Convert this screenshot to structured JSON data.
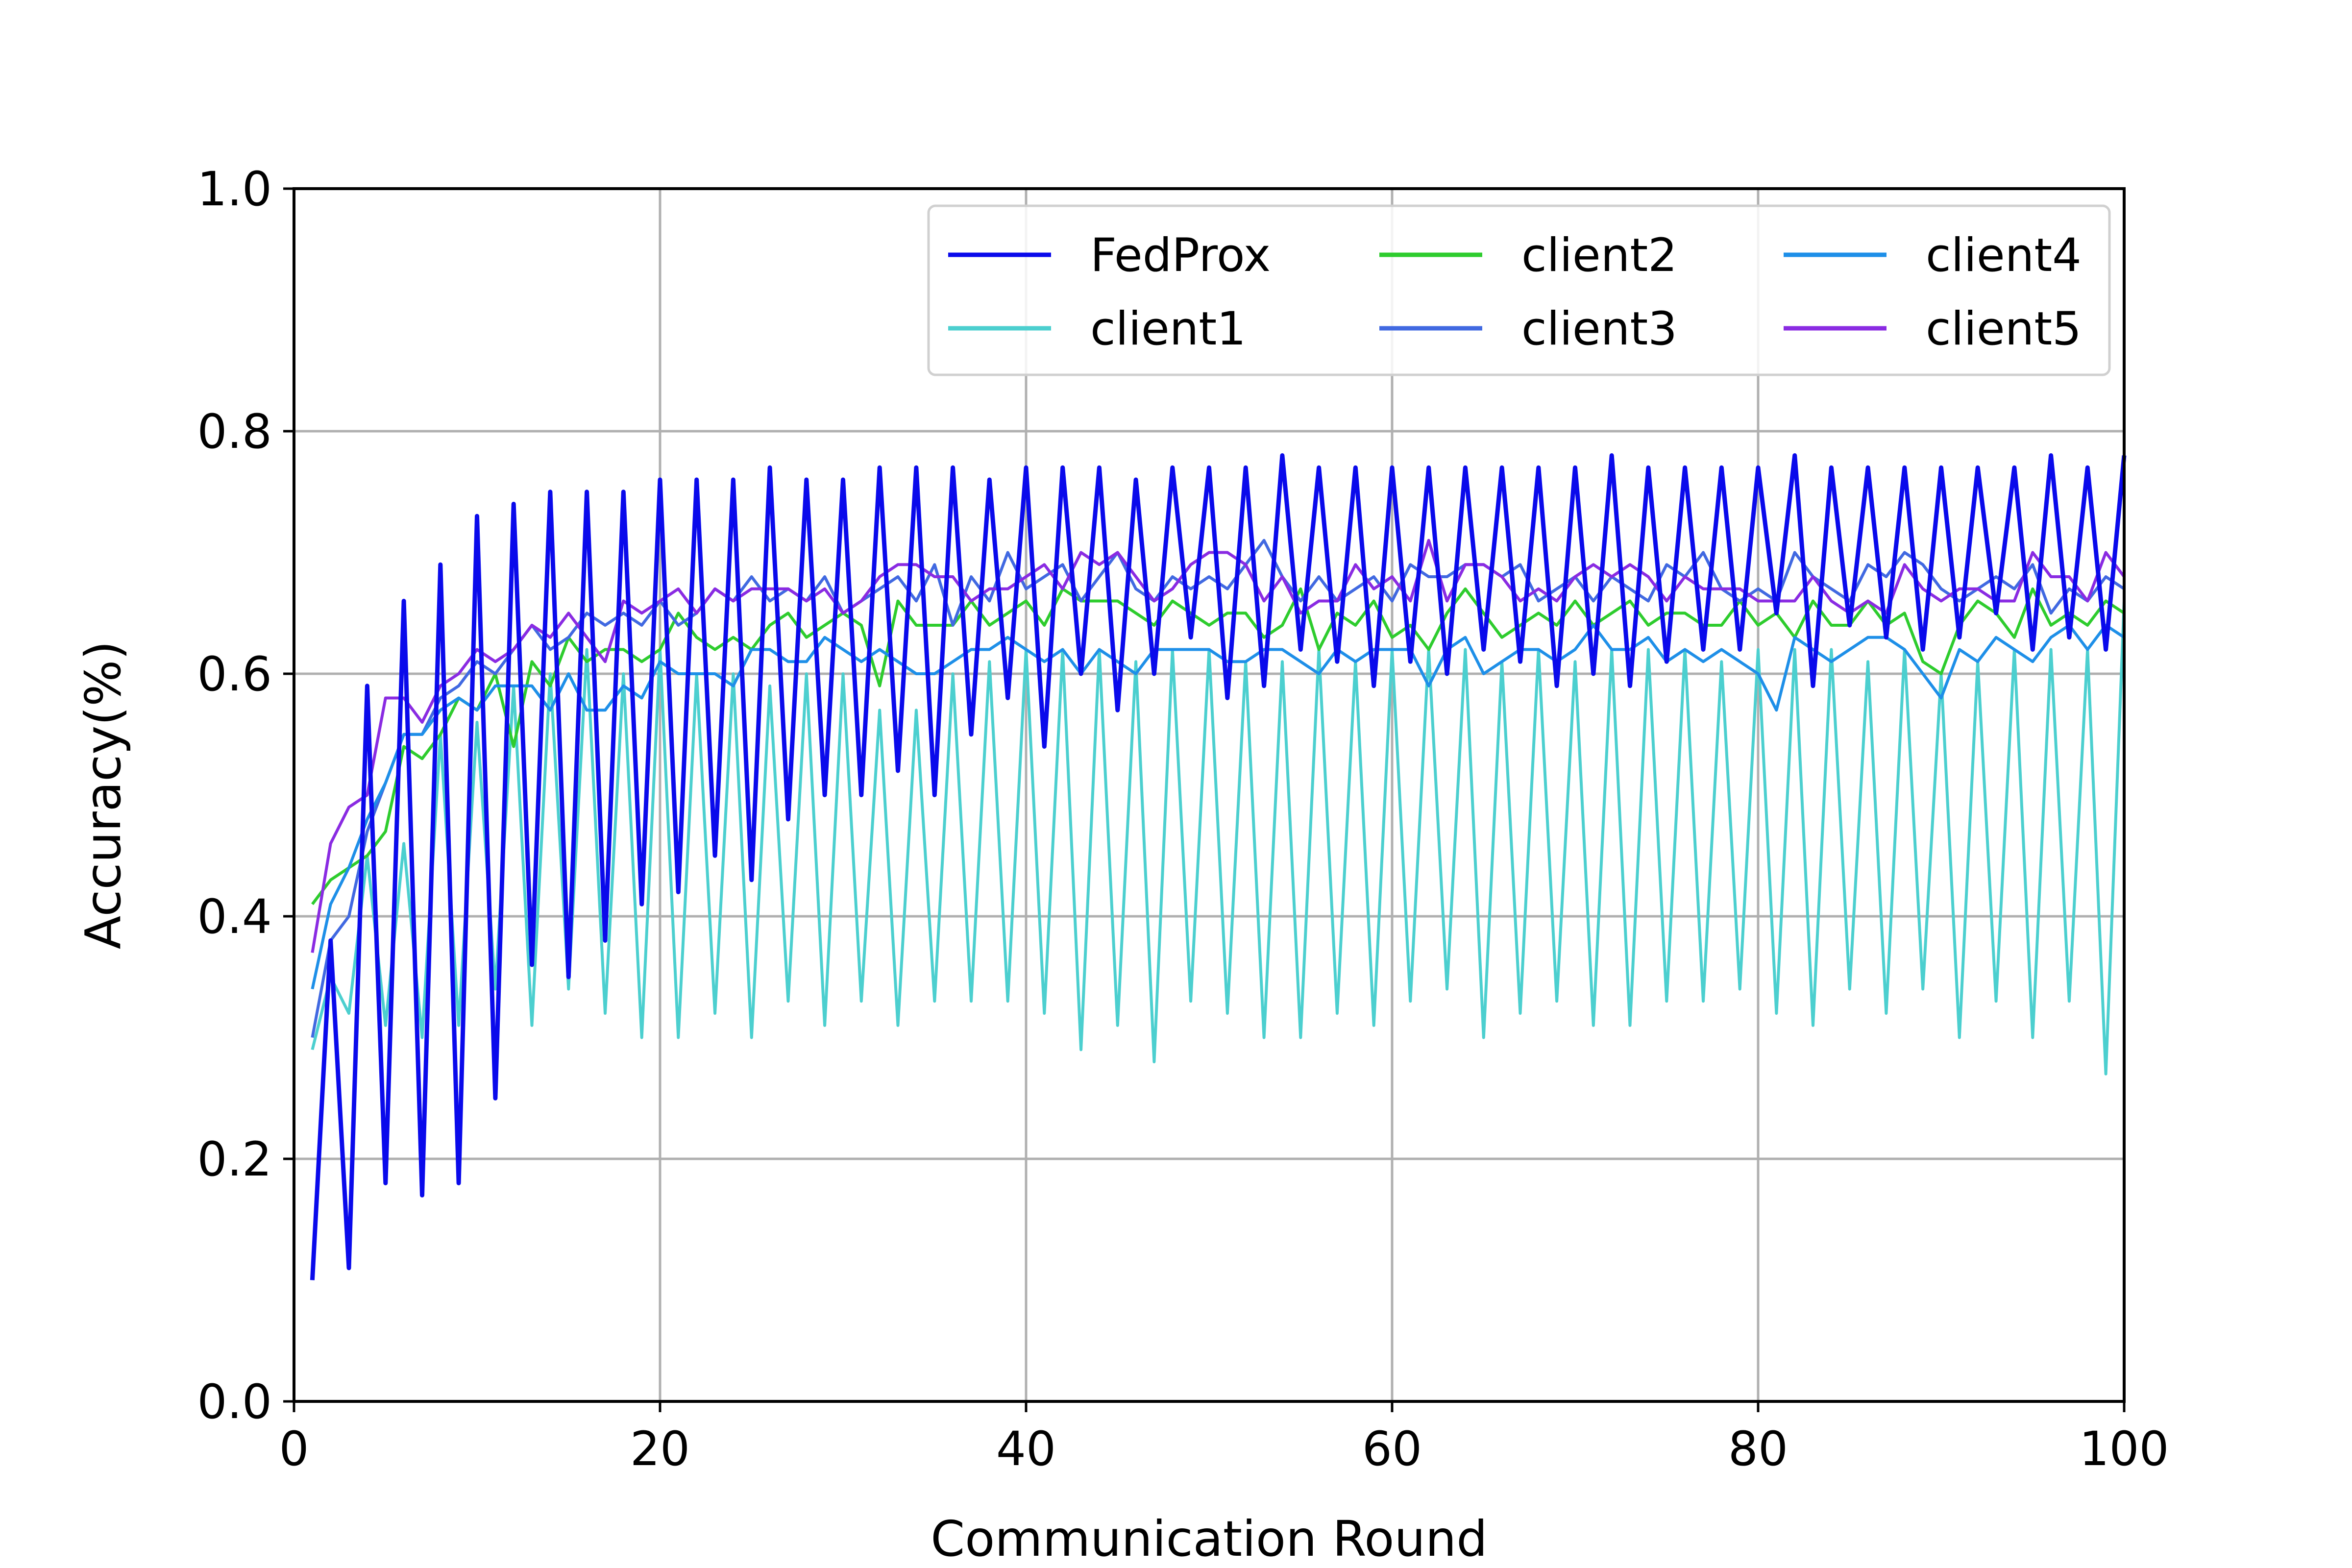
{
  "chart_data": {
    "type": "line",
    "title": "",
    "xlabel": "Communication Round",
    "ylabel": "Accuracy(%)",
    "xlim": [
      0,
      100
    ],
    "ylim": [
      0.0,
      1.0
    ],
    "xticks": [
      "0",
      "20",
      "40",
      "60",
      "80",
      "100"
    ],
    "yticks": [
      "0.0",
      "0.2",
      "0.4",
      "0.6",
      "0.8",
      "1.0"
    ],
    "grid": true,
    "legend": {
      "placement": "top-right",
      "columns": 3
    },
    "series": [
      {
        "name": "FedProx",
        "color": "#0a0aeb",
        "x": [
          1,
          2,
          3,
          4,
          5,
          6,
          7,
          8,
          9,
          10,
          11,
          12,
          13,
          14,
          15,
          16,
          17,
          18,
          19,
          20,
          21,
          22,
          23,
          24,
          25,
          26,
          27,
          28,
          29,
          30,
          31,
          32,
          33,
          34,
          35,
          36,
          37,
          38,
          39,
          40,
          41,
          42,
          43,
          44,
          45,
          46,
          47,
          48,
          49,
          50,
          51,
          52,
          53,
          54,
          55,
          56,
          57,
          58,
          59,
          60,
          61,
          62,
          63,
          64,
          65,
          66,
          67,
          68,
          69,
          70,
          71,
          72,
          73,
          74,
          75,
          76,
          77,
          78,
          79,
          80,
          81,
          82,
          83,
          84,
          85,
          86,
          87,
          88,
          89,
          90,
          91,
          92,
          93,
          94,
          95,
          96,
          97,
          98,
          99,
          100
        ],
        "y": [
          0.1,
          0.38,
          0.11,
          0.59,
          0.18,
          0.66,
          0.17,
          0.69,
          0.18,
          0.73,
          0.25,
          0.74,
          0.36,
          0.75,
          0.35,
          0.75,
          0.38,
          0.75,
          0.41,
          0.76,
          0.42,
          0.76,
          0.45,
          0.76,
          0.43,
          0.77,
          0.48,
          0.76,
          0.5,
          0.76,
          0.5,
          0.77,
          0.52,
          0.77,
          0.5,
          0.77,
          0.55,
          0.76,
          0.58,
          0.77,
          0.54,
          0.77,
          0.6,
          0.77,
          0.57,
          0.76,
          0.6,
          0.77,
          0.63,
          0.77,
          0.58,
          0.77,
          0.59,
          0.78,
          0.62,
          0.77,
          0.61,
          0.77,
          0.59,
          0.77,
          0.61,
          0.77,
          0.6,
          0.77,
          0.62,
          0.77,
          0.61,
          0.77,
          0.59,
          0.77,
          0.6,
          0.78,
          0.59,
          0.77,
          0.61,
          0.77,
          0.62,
          0.77,
          0.62,
          0.77,
          0.65,
          0.78,
          0.59,
          0.77,
          0.64,
          0.77,
          0.63,
          0.77,
          0.62,
          0.77,
          0.63,
          0.77,
          0.65,
          0.77,
          0.62,
          0.78,
          0.63,
          0.77,
          0.62,
          0.78
        ]
      },
      {
        "name": "client1",
        "color": "#4ccfcf",
        "x": [
          1,
          2,
          3,
          4,
          5,
          6,
          7,
          8,
          9,
          10,
          11,
          12,
          13,
          14,
          15,
          16,
          17,
          18,
          19,
          20,
          21,
          22,
          23,
          24,
          25,
          26,
          27,
          28,
          29,
          30,
          31,
          32,
          33,
          34,
          35,
          36,
          37,
          38,
          39,
          40,
          41,
          42,
          43,
          44,
          45,
          46,
          47,
          48,
          49,
          50,
          51,
          52,
          53,
          54,
          55,
          56,
          57,
          58,
          59,
          60,
          61,
          62,
          63,
          64,
          65,
          66,
          67,
          68,
          69,
          70,
          71,
          72,
          73,
          74,
          75,
          76,
          77,
          78,
          79,
          80,
          81,
          82,
          83,
          84,
          85,
          86,
          87,
          88,
          89,
          90,
          91,
          92,
          93,
          94,
          95,
          96,
          97,
          98,
          99,
          100
        ],
        "y": [
          0.29,
          0.35,
          0.32,
          0.45,
          0.31,
          0.46,
          0.3,
          0.55,
          0.31,
          0.56,
          0.34,
          0.59,
          0.31,
          0.6,
          0.34,
          0.62,
          0.32,
          0.6,
          0.3,
          0.62,
          0.3,
          0.6,
          0.32,
          0.6,
          0.3,
          0.59,
          0.33,
          0.6,
          0.31,
          0.6,
          0.33,
          0.57,
          0.31,
          0.57,
          0.33,
          0.6,
          0.33,
          0.61,
          0.33,
          0.62,
          0.32,
          0.62,
          0.29,
          0.62,
          0.31,
          0.61,
          0.28,
          0.62,
          0.33,
          0.62,
          0.32,
          0.61,
          0.3,
          0.61,
          0.3,
          0.62,
          0.32,
          0.61,
          0.31,
          0.62,
          0.33,
          0.62,
          0.34,
          0.62,
          0.3,
          0.61,
          0.32,
          0.62,
          0.33,
          0.61,
          0.31,
          0.62,
          0.31,
          0.62,
          0.33,
          0.62,
          0.33,
          0.61,
          0.34,
          0.62,
          0.32,
          0.62,
          0.31,
          0.62,
          0.34,
          0.61,
          0.32,
          0.62,
          0.34,
          0.6,
          0.3,
          0.61,
          0.33,
          0.62,
          0.3,
          0.62,
          0.33,
          0.62,
          0.27,
          0.66
        ]
      },
      {
        "name": "client2",
        "color": "#2ecc2e",
        "x": [
          1,
          2,
          3,
          4,
          5,
          6,
          7,
          8,
          9,
          10,
          11,
          12,
          13,
          14,
          15,
          16,
          17,
          18,
          19,
          20,
          21,
          22,
          23,
          24,
          25,
          26,
          27,
          28,
          29,
          30,
          31,
          32,
          33,
          34,
          35,
          36,
          37,
          38,
          39,
          40,
          41,
          42,
          43,
          44,
          45,
          46,
          47,
          48,
          49,
          50,
          51,
          52,
          53,
          54,
          55,
          56,
          57,
          58,
          59,
          60,
          61,
          62,
          63,
          64,
          65,
          66,
          67,
          68,
          69,
          70,
          71,
          72,
          73,
          74,
          75,
          76,
          77,
          78,
          79,
          80,
          81,
          82,
          83,
          84,
          85,
          86,
          87,
          88,
          89,
          90,
          91,
          92,
          93,
          94,
          95,
          96,
          97,
          98,
          99,
          100
        ],
        "y": [
          0.41,
          0.43,
          0.44,
          0.45,
          0.47,
          0.54,
          0.53,
          0.55,
          0.58,
          0.57,
          0.6,
          0.54,
          0.61,
          0.59,
          0.63,
          0.61,
          0.62,
          0.62,
          0.61,
          0.62,
          0.65,
          0.63,
          0.62,
          0.63,
          0.62,
          0.64,
          0.65,
          0.63,
          0.64,
          0.65,
          0.64,
          0.59,
          0.66,
          0.64,
          0.64,
          0.64,
          0.66,
          0.64,
          0.65,
          0.66,
          0.64,
          0.67,
          0.66,
          0.66,
          0.66,
          0.65,
          0.64,
          0.66,
          0.65,
          0.64,
          0.65,
          0.65,
          0.63,
          0.64,
          0.67,
          0.62,
          0.65,
          0.64,
          0.66,
          0.63,
          0.64,
          0.62,
          0.65,
          0.67,
          0.65,
          0.63,
          0.64,
          0.65,
          0.64,
          0.66,
          0.64,
          0.65,
          0.66,
          0.64,
          0.65,
          0.65,
          0.64,
          0.64,
          0.66,
          0.64,
          0.65,
          0.63,
          0.66,
          0.64,
          0.64,
          0.66,
          0.64,
          0.65,
          0.61,
          0.6,
          0.64,
          0.66,
          0.65,
          0.63,
          0.67,
          0.64,
          0.65,
          0.64,
          0.66,
          0.65
        ]
      },
      {
        "name": "client3",
        "color": "#4169e1",
        "x": [
          1,
          2,
          3,
          4,
          5,
          6,
          7,
          8,
          9,
          10,
          11,
          12,
          13,
          14,
          15,
          16,
          17,
          18,
          19,
          20,
          21,
          22,
          23,
          24,
          25,
          26,
          27,
          28,
          29,
          30,
          31,
          32,
          33,
          34,
          35,
          36,
          37,
          38,
          39,
          40,
          41,
          42,
          43,
          44,
          45,
          46,
          47,
          48,
          49,
          50,
          51,
          52,
          53,
          54,
          55,
          56,
          57,
          58,
          59,
          60,
          61,
          62,
          63,
          64,
          65,
          66,
          67,
          68,
          69,
          70,
          71,
          72,
          73,
          74,
          75,
          76,
          77,
          78,
          79,
          80,
          81,
          82,
          83,
          84,
          85,
          86,
          87,
          88,
          89,
          90,
          91,
          92,
          93,
          94,
          95,
          96,
          97,
          98,
          99,
          100
        ],
        "y": [
          0.3,
          0.38,
          0.4,
          0.47,
          0.51,
          0.55,
          0.55,
          0.58,
          0.59,
          0.61,
          0.6,
          0.62,
          0.64,
          0.62,
          0.63,
          0.65,
          0.64,
          0.65,
          0.64,
          0.66,
          0.64,
          0.65,
          0.67,
          0.66,
          0.68,
          0.66,
          0.67,
          0.66,
          0.68,
          0.65,
          0.66,
          0.67,
          0.68,
          0.66,
          0.69,
          0.64,
          0.68,
          0.66,
          0.7,
          0.67,
          0.68,
          0.69,
          0.66,
          0.68,
          0.7,
          0.67,
          0.66,
          0.68,
          0.67,
          0.68,
          0.67,
          0.69,
          0.71,
          0.68,
          0.66,
          0.68,
          0.66,
          0.67,
          0.68,
          0.66,
          0.69,
          0.68,
          0.68,
          0.69,
          0.69,
          0.68,
          0.69,
          0.66,
          0.67,
          0.68,
          0.66,
          0.68,
          0.67,
          0.66,
          0.69,
          0.68,
          0.7,
          0.67,
          0.66,
          0.67,
          0.66,
          0.7,
          0.68,
          0.67,
          0.66,
          0.69,
          0.68,
          0.7,
          0.69,
          0.67,
          0.66,
          0.67,
          0.68,
          0.67,
          0.69,
          0.65,
          0.67,
          0.66,
          0.68,
          0.67
        ]
      },
      {
        "name": "client4",
        "color": "#1e8fe8",
        "x": [
          1,
          2,
          3,
          4,
          5,
          6,
          7,
          8,
          9,
          10,
          11,
          12,
          13,
          14,
          15,
          16,
          17,
          18,
          19,
          20,
          21,
          22,
          23,
          24,
          25,
          26,
          27,
          28,
          29,
          30,
          31,
          32,
          33,
          34,
          35,
          36,
          37,
          38,
          39,
          40,
          41,
          42,
          43,
          44,
          45,
          46,
          47,
          48,
          49,
          50,
          51,
          52,
          53,
          54,
          55,
          56,
          57,
          58,
          59,
          60,
          61,
          62,
          63,
          64,
          65,
          66,
          67,
          68,
          69,
          70,
          71,
          72,
          73,
          74,
          75,
          76,
          77,
          78,
          79,
          80,
          81,
          82,
          83,
          84,
          85,
          86,
          87,
          88,
          89,
          90,
          91,
          92,
          93,
          94,
          95,
          96,
          97,
          98,
          99,
          100
        ],
        "y": [
          0.34,
          0.41,
          0.44,
          0.48,
          0.51,
          0.55,
          0.55,
          0.57,
          0.58,
          0.57,
          0.59,
          0.59,
          0.59,
          0.57,
          0.6,
          0.57,
          0.57,
          0.59,
          0.58,
          0.61,
          0.6,
          0.6,
          0.6,
          0.59,
          0.62,
          0.62,
          0.61,
          0.61,
          0.63,
          0.62,
          0.61,
          0.62,
          0.61,
          0.6,
          0.6,
          0.61,
          0.62,
          0.62,
          0.63,
          0.62,
          0.61,
          0.62,
          0.6,
          0.62,
          0.61,
          0.6,
          0.62,
          0.62,
          0.62,
          0.62,
          0.61,
          0.61,
          0.62,
          0.62,
          0.61,
          0.6,
          0.62,
          0.61,
          0.62,
          0.62,
          0.62,
          0.59,
          0.62,
          0.63,
          0.6,
          0.61,
          0.62,
          0.62,
          0.61,
          0.62,
          0.64,
          0.62,
          0.62,
          0.63,
          0.61,
          0.62,
          0.61,
          0.62,
          0.61,
          0.6,
          0.57,
          0.63,
          0.62,
          0.61,
          0.62,
          0.63,
          0.63,
          0.62,
          0.6,
          0.58,
          0.62,
          0.61,
          0.63,
          0.62,
          0.61,
          0.63,
          0.64,
          0.62,
          0.64,
          0.63
        ]
      },
      {
        "name": "client5",
        "color": "#8a2be2",
        "x": [
          1,
          2,
          3,
          4,
          5,
          6,
          7,
          8,
          9,
          10,
          11,
          12,
          13,
          14,
          15,
          16,
          17,
          18,
          19,
          20,
          21,
          22,
          23,
          24,
          25,
          26,
          27,
          28,
          29,
          30,
          31,
          32,
          33,
          34,
          35,
          36,
          37,
          38,
          39,
          40,
          41,
          42,
          43,
          44,
          45,
          46,
          47,
          48,
          49,
          50,
          51,
          52,
          53,
          54,
          55,
          56,
          57,
          58,
          59,
          60,
          61,
          62,
          63,
          64,
          65,
          66,
          67,
          68,
          69,
          70,
          71,
          72,
          73,
          74,
          75,
          76,
          77,
          78,
          79,
          80,
          81,
          82,
          83,
          84,
          85,
          86,
          87,
          88,
          89,
          90,
          91,
          92,
          93,
          94,
          95,
          96,
          97,
          98,
          99,
          100
        ],
        "y": [
          0.37,
          0.46,
          0.49,
          0.5,
          0.58,
          0.58,
          0.56,
          0.59,
          0.6,
          0.62,
          0.61,
          0.62,
          0.64,
          0.63,
          0.65,
          0.63,
          0.61,
          0.66,
          0.65,
          0.66,
          0.67,
          0.65,
          0.67,
          0.66,
          0.67,
          0.67,
          0.67,
          0.66,
          0.67,
          0.65,
          0.66,
          0.68,
          0.69,
          0.69,
          0.68,
          0.68,
          0.66,
          0.67,
          0.67,
          0.68,
          0.69,
          0.67,
          0.7,
          0.69,
          0.7,
          0.68,
          0.66,
          0.67,
          0.69,
          0.7,
          0.7,
          0.69,
          0.66,
          0.68,
          0.65,
          0.66,
          0.66,
          0.69,
          0.67,
          0.68,
          0.66,
          0.71,
          0.66,
          0.69,
          0.69,
          0.68,
          0.66,
          0.67,
          0.66,
          0.68,
          0.69,
          0.68,
          0.69,
          0.68,
          0.66,
          0.68,
          0.67,
          0.67,
          0.67,
          0.66,
          0.66,
          0.66,
          0.68,
          0.66,
          0.65,
          0.66,
          0.65,
          0.69,
          0.67,
          0.66,
          0.67,
          0.67,
          0.66,
          0.66,
          0.7,
          0.68,
          0.68,
          0.66,
          0.7,
          0.68
        ]
      }
    ]
  }
}
